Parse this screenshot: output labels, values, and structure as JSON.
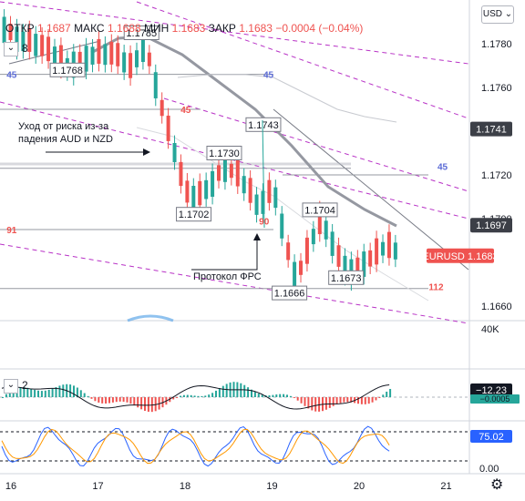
{
  "header": {
    "currency_button": "USD",
    "open_label": "ОТКР",
    "open_value": "1.1687",
    "high_label": "МАКС",
    "high_value": "1.1688",
    "low_label": "МИН",
    "low_value": "1.1683",
    "close_label": "ЗАКР",
    "close_value": "1.1683",
    "change": "−0.0004 (−0.04%)",
    "indicator_count": "8",
    "osc_count": "2"
  },
  "chart_data": {
    "type": "candlestick",
    "symbol": "EURUSD",
    "x_ticks": [
      "16",
      "17",
      "18",
      "19",
      "20",
      "21"
    ],
    "price_ticks": [
      "1.1780",
      "1.1760",
      "1.1720",
      "1.1700",
      "1.1660"
    ],
    "ylim": [
      1.1655,
      1.1795
    ],
    "price_badges": [
      {
        "label": "1.1741",
        "value": 1.1741,
        "color": "#3c3f47"
      },
      {
        "label": "1.1697",
        "value": 1.1697,
        "color": "#3c3f47"
      },
      {
        "label": "EURUSD 1.1683",
        "value": 1.1683,
        "color": "#ef5350"
      }
    ],
    "volume_tick": "40K",
    "macd": {
      "value_label": "−12.23",
      "signal_label": "−0.0005"
    },
    "stoch": {
      "value_label": "75.02",
      "ticks": [
        "0.00"
      ]
    },
    "annotations": [
      {
        "text": "1.1785",
        "day": 17.5,
        "price": 1.1785
      },
      {
        "text": "1.1768",
        "day": 16.65,
        "price": 1.1768
      },
      {
        "text": "1.1743",
        "day": 18.9,
        "price": 1.1743
      },
      {
        "text": "1.1730",
        "day": 18.45,
        "price": 1.173
      },
      {
        "text": "1.1702",
        "day": 18.1,
        "price": 1.1702
      },
      {
        "text": "1.1704",
        "day": 19.55,
        "price": 1.1704
      },
      {
        "text": "1.1666",
        "day": 19.2,
        "price": 1.1666
      },
      {
        "text": "1.1673",
        "day": 19.85,
        "price": 1.1673
      }
    ],
    "level_labels": [
      {
        "text": "45",
        "color": "#5b6bd6",
        "day": 15.95,
        "price": 1.1766
      },
      {
        "text": "45",
        "color": "#5b6bd6",
        "day": 18.9,
        "price": 1.1766
      },
      {
        "text": "45",
        "color": "#ef5350",
        "day": 17.95,
        "price": 1.175
      },
      {
        "text": "45",
        "color": "#5b6bd6",
        "day": 20.9,
        "price": 1.1724
      },
      {
        "text": "91",
        "color": "#ef5350",
        "day": 15.95,
        "price": 1.1695
      },
      {
        "text": "90",
        "color": "#ef5350",
        "day": 18.85,
        "price": 1.1699
      },
      {
        "text": "112",
        "color": "#ef5350",
        "day": 20.8,
        "price": 1.1669
      }
    ],
    "notes": [
      {
        "text": "Уход от риска из-за"
      },
      {
        "text": "падения AUD и NZD"
      },
      {
        "text": "Протокол ФРС"
      }
    ]
  }
}
